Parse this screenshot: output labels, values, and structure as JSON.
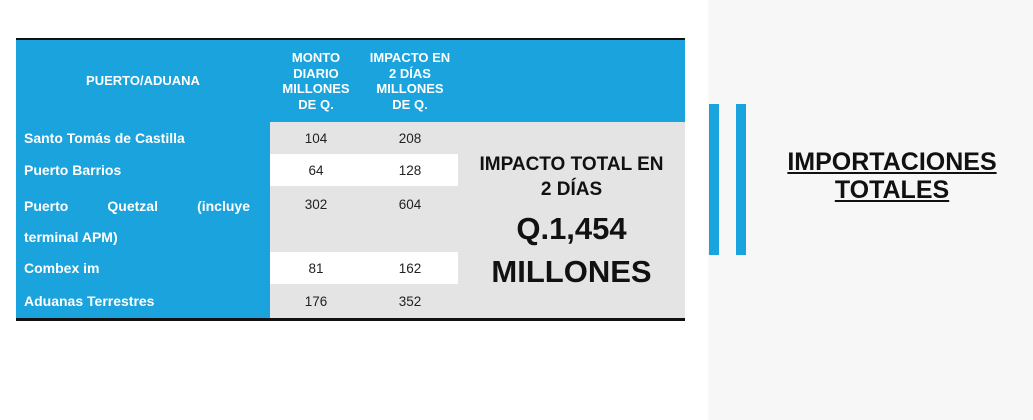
{
  "table": {
    "headers": {
      "port": "PUERTO/ADUANA",
      "daily_line1": "MONTO",
      "daily_line2": "DIARIO",
      "daily_line3": "MILLONES",
      "daily_line4": "DE Q.",
      "impact_line1": "IMPACTO EN",
      "impact_line2": "2 DÍAS",
      "impact_line3": "MILLONES",
      "impact_line4": "DE Q."
    },
    "rows": [
      {
        "name": "Santo Tomás de Castilla",
        "daily": "104",
        "impact": "208"
      },
      {
        "name": "Puerto Barrios",
        "daily": "64",
        "impact": "128"
      },
      {
        "name_word1": "Puerto",
        "name_word2": "Quetzal",
        "name_word3": "(incluye",
        "name_line2": "terminal APM)",
        "daily": "302",
        "impact": "604"
      },
      {
        "name": "Combex im",
        "daily": "81",
        "impact": "162"
      },
      {
        "name": "Aduanas Terrestres",
        "daily": "176",
        "impact": "352"
      }
    ]
  },
  "total": {
    "title_line1": "IMPACTO TOTAL EN",
    "title_line2": "2 DÍAS",
    "amount": "Q.1,454",
    "unit": "MILLONES"
  },
  "side": {
    "title_line1": "IMPORTACIONES",
    "title_line2": "TOTALES"
  },
  "colors": {
    "accent_blue": "#1aa3dc",
    "shade_gray": "#e4e4e4"
  }
}
